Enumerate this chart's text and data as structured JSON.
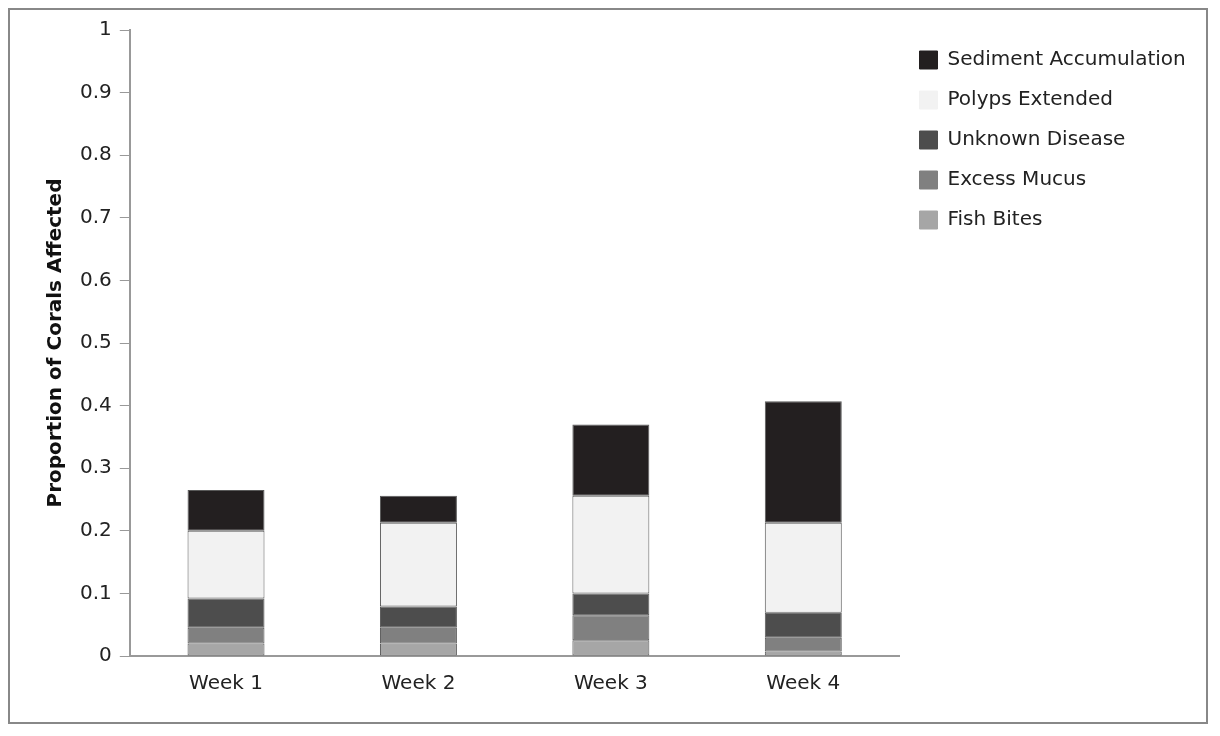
{
  "chart_data": {
    "type": "bar",
    "stacked": true,
    "ylabel": "Proportion of Corals Affected",
    "categories": [
      "Week 1",
      "Week 2",
      "Week 3",
      "Week 4"
    ],
    "series": [
      {
        "name": "Fish Bites",
        "color": "#a6a6a6",
        "values": [
          0.02,
          0.02,
          0.025,
          0.007
        ]
      },
      {
        "name": "Excess Mucus",
        "color": "#808080",
        "values": [
          0.025,
          0.025,
          0.04,
          0.022
        ]
      },
      {
        "name": "Unknown Disease",
        "color": "#4d4d4d",
        "values": [
          0.047,
          0.034,
          0.035,
          0.04
        ]
      },
      {
        "name": "Polyps Extended",
        "color": "#f2f2f2",
        "values": [
          0.108,
          0.134,
          0.156,
          0.144
        ]
      },
      {
        "name": "Sediment Accumulation",
        "color": "#231f20",
        "values": [
          0.065,
          0.043,
          0.114,
          0.194
        ]
      }
    ],
    "ylim": [
      0,
      1
    ],
    "yticks": [
      0,
      0.1,
      0.2,
      0.3,
      0.4,
      0.5,
      0.6,
      0.7,
      0.8,
      0.9,
      1
    ],
    "grid": false,
    "legend": "top right"
  }
}
